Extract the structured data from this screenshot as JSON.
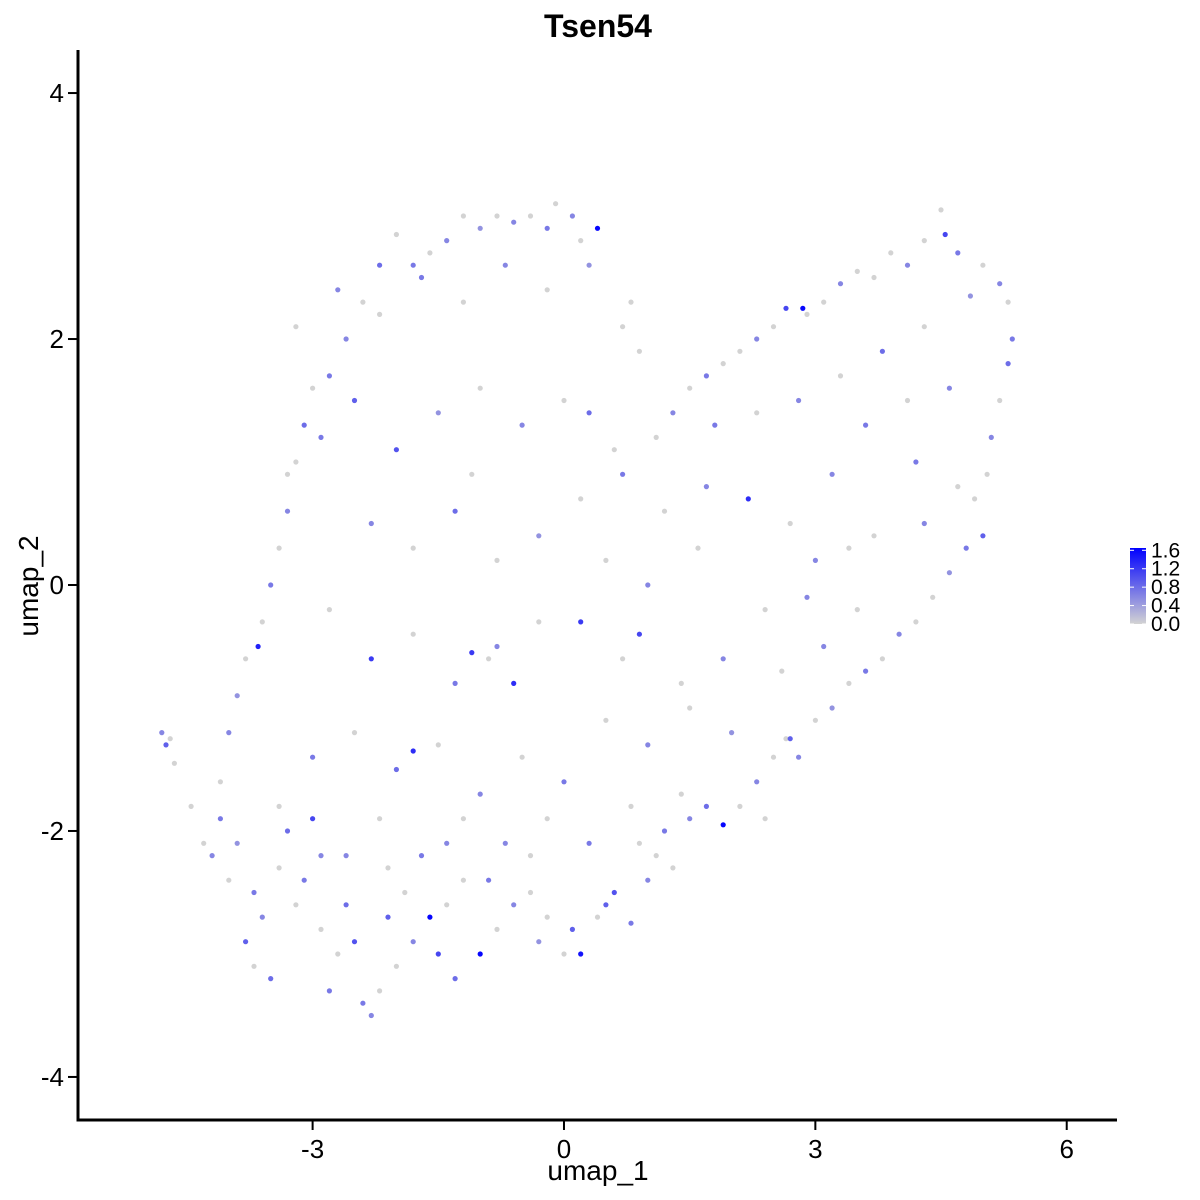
{
  "chart_data": {
    "type": "scatter",
    "title": "Tsen54",
    "xlabel": "umap_1",
    "ylabel": "umap_2",
    "xlim": [
      -5.8,
      6.6
    ],
    "ylim": [
      -4.35,
      4.35
    ],
    "x_ticks": [
      -3,
      0,
      3,
      6
    ],
    "y_ticks": [
      -4,
      -2,
      0,
      2,
      4
    ],
    "x_tick_labels": [
      "-3",
      "0",
      "3",
      "6"
    ],
    "y_tick_labels": [
      "-4",
      "-2",
      "0",
      "2",
      "4"
    ],
    "grid": false,
    "color_scale": {
      "low_color": "#d3d3d3",
      "high_color": "#0000ff",
      "min": 0.0,
      "max": 1.65,
      "ticks": [
        0.0,
        0.4,
        0.8,
        1.2,
        1.6
      ],
      "tick_labels": [
        "0.0",
        "0.4",
        "0.8",
        "1.2",
        "1.6"
      ],
      "position": "right"
    },
    "points": [
      [
        -4.8,
        -1.2,
        0.6
      ],
      [
        -4.75,
        -1.3,
        0.9
      ],
      [
        -4.7,
        -1.25,
        0
      ],
      [
        -4.65,
        -1.45,
        0
      ],
      [
        -4.45,
        -1.8,
        0
      ],
      [
        -4.3,
        -2.1,
        0
      ],
      [
        -4.2,
        -2.2,
        0.6
      ],
      [
        -4.1,
        -1.9,
        0.7
      ],
      [
        -4.0,
        -2.4,
        0
      ],
      [
        -3.9,
        -2.1,
        0.5
      ],
      [
        -3.8,
        -2.9,
        0.9
      ],
      [
        -3.7,
        -3.1,
        0
      ],
      [
        -3.6,
        -2.7,
        0.6
      ],
      [
        -3.5,
        -3.2,
        0.8
      ],
      [
        -3.4,
        -2.3,
        0
      ],
      [
        -3.3,
        -2.0,
        0.8
      ],
      [
        -3.2,
        -2.6,
        0
      ],
      [
        -3.1,
        -2.4,
        0.7
      ],
      [
        -3.0,
        -1.9,
        1.1
      ],
      [
        -2.9,
        -2.8,
        0
      ],
      [
        -2.8,
        -3.3,
        0.7
      ],
      [
        -2.7,
        -3.0,
        0
      ],
      [
        -2.6,
        -2.2,
        0.6
      ],
      [
        -2.5,
        -2.9,
        1.0
      ],
      [
        -2.4,
        -3.4,
        0.7
      ],
      [
        -2.3,
        -3.5,
        0.6
      ],
      [
        -2.2,
        -3.3,
        0
      ],
      [
        -2.1,
        -2.7,
        0.9
      ],
      [
        -2.0,
        -3.1,
        0
      ],
      [
        -1.9,
        -2.5,
        0
      ],
      [
        -1.8,
        -2.9,
        0.6
      ],
      [
        -1.6,
        -2.7,
        1.6
      ],
      [
        -1.5,
        -3.0,
        1.1
      ],
      [
        -1.4,
        -2.6,
        0
      ],
      [
        -1.3,
        -3.2,
        0.8
      ],
      [
        -1.2,
        -2.4,
        0
      ],
      [
        -1.0,
        -3.0,
        1.6
      ],
      [
        -0.9,
        -2.4,
        0.7
      ],
      [
        -0.8,
        -2.8,
        0
      ],
      [
        -0.6,
        -2.6,
        0.6
      ],
      [
        -0.4,
        -2.2,
        0
      ],
      [
        -0.3,
        -2.9,
        0.5
      ],
      [
        -0.2,
        -2.7,
        0
      ],
      [
        0.0,
        -3.0,
        0
      ],
      [
        0.2,
        -3.0,
        1.5
      ],
      [
        0.1,
        -2.8,
        0.9
      ],
      [
        0.4,
        -2.7,
        0
      ],
      [
        0.5,
        -2.6,
        0.9
      ],
      [
        0.6,
        -2.5,
        1.0
      ],
      [
        0.8,
        -2.75,
        0.7
      ],
      [
        0.9,
        -2.1,
        0
      ],
      [
        1.0,
        -2.4,
        0.6
      ],
      [
        1.1,
        -2.2,
        0
      ],
      [
        1.2,
        -2.0,
        0.7
      ],
      [
        1.4,
        -1.7,
        0
      ],
      [
        1.5,
        -1.9,
        0.6
      ],
      [
        1.7,
        -1.8,
        0.8
      ],
      [
        1.9,
        -1.95,
        1.6
      ],
      [
        2.1,
        -1.8,
        0
      ],
      [
        2.3,
        -1.6,
        0.6
      ],
      [
        2.5,
        -1.4,
        0
      ],
      [
        2.7,
        -1.25,
        0.9
      ],
      [
        2.8,
        -1.4,
        0.6
      ],
      [
        2.65,
        -1.25,
        0
      ],
      [
        3.0,
        -1.1,
        0
      ],
      [
        3.2,
        -1.0,
        0.5
      ],
      [
        3.4,
        -0.8,
        0
      ],
      [
        3.6,
        -0.7,
        0.7
      ],
      [
        3.8,
        -0.6,
        0
      ],
      [
        4.0,
        -0.4,
        0.6
      ],
      [
        4.2,
        -0.3,
        0
      ],
      [
        4.4,
        -0.1,
        0
      ],
      [
        4.6,
        0.1,
        0.5
      ],
      [
        4.8,
        0.3,
        0.7
      ],
      [
        5.0,
        0.4,
        0.9
      ],
      [
        4.9,
        0.7,
        0
      ],
      [
        5.05,
        0.9,
        0
      ],
      [
        5.1,
        1.2,
        0.6
      ],
      [
        5.2,
        1.5,
        0
      ],
      [
        5.3,
        1.8,
        0.8
      ],
      [
        5.35,
        2.0,
        0.7
      ],
      [
        5.3,
        2.3,
        0
      ],
      [
        5.2,
        2.45,
        0.6
      ],
      [
        5.0,
        2.6,
        0
      ],
      [
        4.85,
        2.35,
        0.5
      ],
      [
        4.7,
        2.7,
        0.7
      ],
      [
        4.55,
        2.85,
        1.1
      ],
      [
        4.5,
        3.05,
        0
      ],
      [
        4.3,
        2.8,
        0
      ],
      [
        4.1,
        2.6,
        0.6
      ],
      [
        3.9,
        2.7,
        0
      ],
      [
        3.7,
        2.5,
        0
      ],
      [
        3.5,
        2.55,
        0
      ],
      [
        3.3,
        2.45,
        0.6
      ],
      [
        3.1,
        2.3,
        0
      ],
      [
        2.9,
        2.2,
        0
      ],
      [
        2.85,
        2.25,
        1.6
      ],
      [
        2.65,
        2.25,
        1.1
      ],
      [
        2.5,
        2.1,
        0
      ],
      [
        2.3,
        2.0,
        0.6
      ],
      [
        2.1,
        1.9,
        0
      ],
      [
        1.9,
        1.8,
        0
      ],
      [
        1.7,
        1.7,
        0.7
      ],
      [
        1.5,
        1.6,
        0
      ],
      [
        1.3,
        1.4,
        0.6
      ],
      [
        1.1,
        1.2,
        0
      ],
      [
        0.9,
        1.9,
        0
      ],
      [
        0.7,
        2.1,
        0
      ],
      [
        0.4,
        2.9,
        1.6
      ],
      [
        0.2,
        2.8,
        0
      ],
      [
        0.1,
        3.0,
        0.6
      ],
      [
        -0.1,
        3.1,
        0
      ],
      [
        -0.2,
        2.9,
        0.7
      ],
      [
        -0.4,
        3.0,
        0
      ],
      [
        -0.6,
        2.95,
        0.6
      ],
      [
        -0.8,
        3.0,
        0
      ],
      [
        -1.0,
        2.9,
        0.5
      ],
      [
        -1.2,
        3.0,
        0
      ],
      [
        -1.4,
        2.8,
        0.6
      ],
      [
        -1.6,
        2.7,
        0
      ],
      [
        -1.8,
        2.6,
        0.7
      ],
      [
        -2.0,
        2.85,
        0
      ],
      [
        -2.2,
        2.6,
        0.8
      ],
      [
        -2.4,
        2.3,
        0
      ],
      [
        -2.6,
        2.0,
        0.6
      ],
      [
        -2.8,
        1.7,
        0.7
      ],
      [
        -3.0,
        1.6,
        0
      ],
      [
        -3.1,
        1.3,
        0.8
      ],
      [
        -3.2,
        1.0,
        0
      ],
      [
        -3.3,
        0.6,
        0.6
      ],
      [
        -3.4,
        0.3,
        0
      ],
      [
        -3.5,
        0.0,
        0.7
      ],
      [
        -3.6,
        -0.3,
        0
      ],
      [
        -3.8,
        -0.6,
        0
      ],
      [
        -3.65,
        -0.5,
        1.4
      ],
      [
        -3.9,
        -0.9,
        0.5
      ],
      [
        -4.0,
        -1.2,
        0.6
      ],
      [
        -2.5,
        1.5,
        0.9
      ],
      [
        -2.0,
        1.1,
        1.0
      ],
      [
        -1.5,
        1.4,
        0.5
      ],
      [
        -1.0,
        1.6,
        0
      ],
      [
        -0.5,
        1.3,
        0.6
      ],
      [
        0.0,
        1.5,
        0
      ],
      [
        0.3,
        1.4,
        0.8
      ],
      [
        0.6,
        1.1,
        0
      ],
      [
        -2.3,
        0.5,
        0.6
      ],
      [
        -1.8,
        0.3,
        0
      ],
      [
        -1.3,
        0.6,
        0.8
      ],
      [
        -0.8,
        0.2,
        0
      ],
      [
        -0.3,
        0.4,
        0.5
      ],
      [
        0.2,
        0.7,
        0
      ],
      [
        0.7,
        0.9,
        0.7
      ],
      [
        1.2,
        0.6,
        0
      ],
      [
        1.7,
        0.8,
        0.6
      ],
      [
        2.2,
        0.7,
        1.3
      ],
      [
        2.7,
        0.5,
        0
      ],
      [
        3.2,
        0.9,
        0.6
      ],
      [
        3.7,
        0.4,
        0
      ],
      [
        4.2,
        1.0,
        0.7
      ],
      [
        4.7,
        0.8,
        0
      ],
      [
        -2.8,
        -0.2,
        0
      ],
      [
        -2.3,
        -0.6,
        1.2
      ],
      [
        -1.8,
        -0.4,
        0
      ],
      [
        -1.3,
        -0.8,
        0.7
      ],
      [
        -0.8,
        -0.5,
        0.6
      ],
      [
        -0.6,
        -0.8,
        1.3
      ],
      [
        -0.3,
        -0.3,
        0
      ],
      [
        0.2,
        -0.3,
        1.2
      ],
      [
        0.7,
        -0.6,
        0
      ],
      [
        0.9,
        -0.4,
        1.1
      ],
      [
        1.4,
        -0.8,
        0
      ],
      [
        1.9,
        -0.6,
        0.6
      ],
      [
        2.4,
        -0.2,
        0
      ],
      [
        2.9,
        -0.1,
        0.6
      ],
      [
        3.4,
        0.3,
        0
      ],
      [
        -3.0,
        -1.4,
        0.7
      ],
      [
        -2.5,
        -1.2,
        0
      ],
      [
        -2.0,
        -1.5,
        0.8
      ],
      [
        -1.5,
        -1.3,
        0
      ],
      [
        -1.0,
        -1.7,
        0.6
      ],
      [
        -0.5,
        -1.4,
        0
      ],
      [
        0.0,
        -1.6,
        0.7
      ],
      [
        0.5,
        -1.1,
        0
      ],
      [
        1.0,
        -1.3,
        0.6
      ],
      [
        1.5,
        -1.0,
        0
      ],
      [
        2.0,
        -1.2,
        0.5
      ],
      [
        -1.8,
        -1.35,
        1.3
      ],
      [
        -3.4,
        -1.8,
        0
      ],
      [
        -2.9,
        -2.2,
        0.6
      ],
      [
        -2.2,
        -1.9,
        0
      ],
      [
        -1.7,
        -2.2,
        0.7
      ],
      [
        -1.2,
        -1.9,
        0
      ],
      [
        -0.7,
        -2.1,
        0.6
      ],
      [
        -0.2,
        -1.9,
        0
      ],
      [
        0.3,
        -2.1,
        0.7
      ],
      [
        0.8,
        -1.8,
        0
      ],
      [
        -3.2,
        2.1,
        0
      ],
      [
        -2.7,
        2.4,
        0.6
      ],
      [
        -2.2,
        2.2,
        0
      ],
      [
        -1.7,
        2.5,
        0.7
      ],
      [
        -1.2,
        2.3,
        0
      ],
      [
        -0.7,
        2.6,
        0.6
      ],
      [
        -0.2,
        2.4,
        0
      ],
      [
        0.3,
        2.6,
        0.5
      ],
      [
        0.8,
        2.3,
        0
      ],
      [
        -3.3,
        0.9,
        0
      ],
      [
        -2.9,
        1.2,
        0.7
      ],
      [
        -1.1,
        0.9,
        0
      ],
      [
        1.8,
        1.3,
        0.7
      ],
      [
        2.3,
        1.4,
        0
      ],
      [
        2.8,
        1.5,
        0.6
      ],
      [
        3.3,
        1.7,
        0
      ],
      [
        3.8,
        1.9,
        0.8
      ],
      [
        4.3,
        2.1,
        0
      ],
      [
        4.6,
        1.6,
        0.6
      ],
      [
        3.6,
        1.3,
        0.7
      ],
      [
        4.1,
        1.5,
        0
      ],
      [
        3.0,
        0.2,
        0.6
      ],
      [
        3.5,
        -0.2,
        0
      ],
      [
        4.3,
        0.5,
        0.6
      ],
      [
        -1.1,
        -0.55,
        1.2
      ],
      [
        -0.9,
        -0.6,
        0
      ],
      [
        0.5,
        0.2,
        0
      ],
      [
        1.0,
        0.0,
        0.6
      ],
      [
        1.6,
        0.3,
        0
      ],
      [
        2.6,
        -0.7,
        0
      ],
      [
        -4.1,
        -1.6,
        0
      ],
      [
        -3.7,
        -2.5,
        0.7
      ],
      [
        -2.6,
        -2.6,
        0.8
      ],
      [
        -2.1,
        -2.3,
        0
      ],
      [
        -1.4,
        -2.1,
        0.6
      ],
      [
        -0.4,
        -2.5,
        0
      ],
      [
        1.3,
        -2.3,
        0
      ],
      [
        2.4,
        -1.9,
        0
      ],
      [
        3.1,
        -0.5,
        0.6
      ]
    ]
  }
}
